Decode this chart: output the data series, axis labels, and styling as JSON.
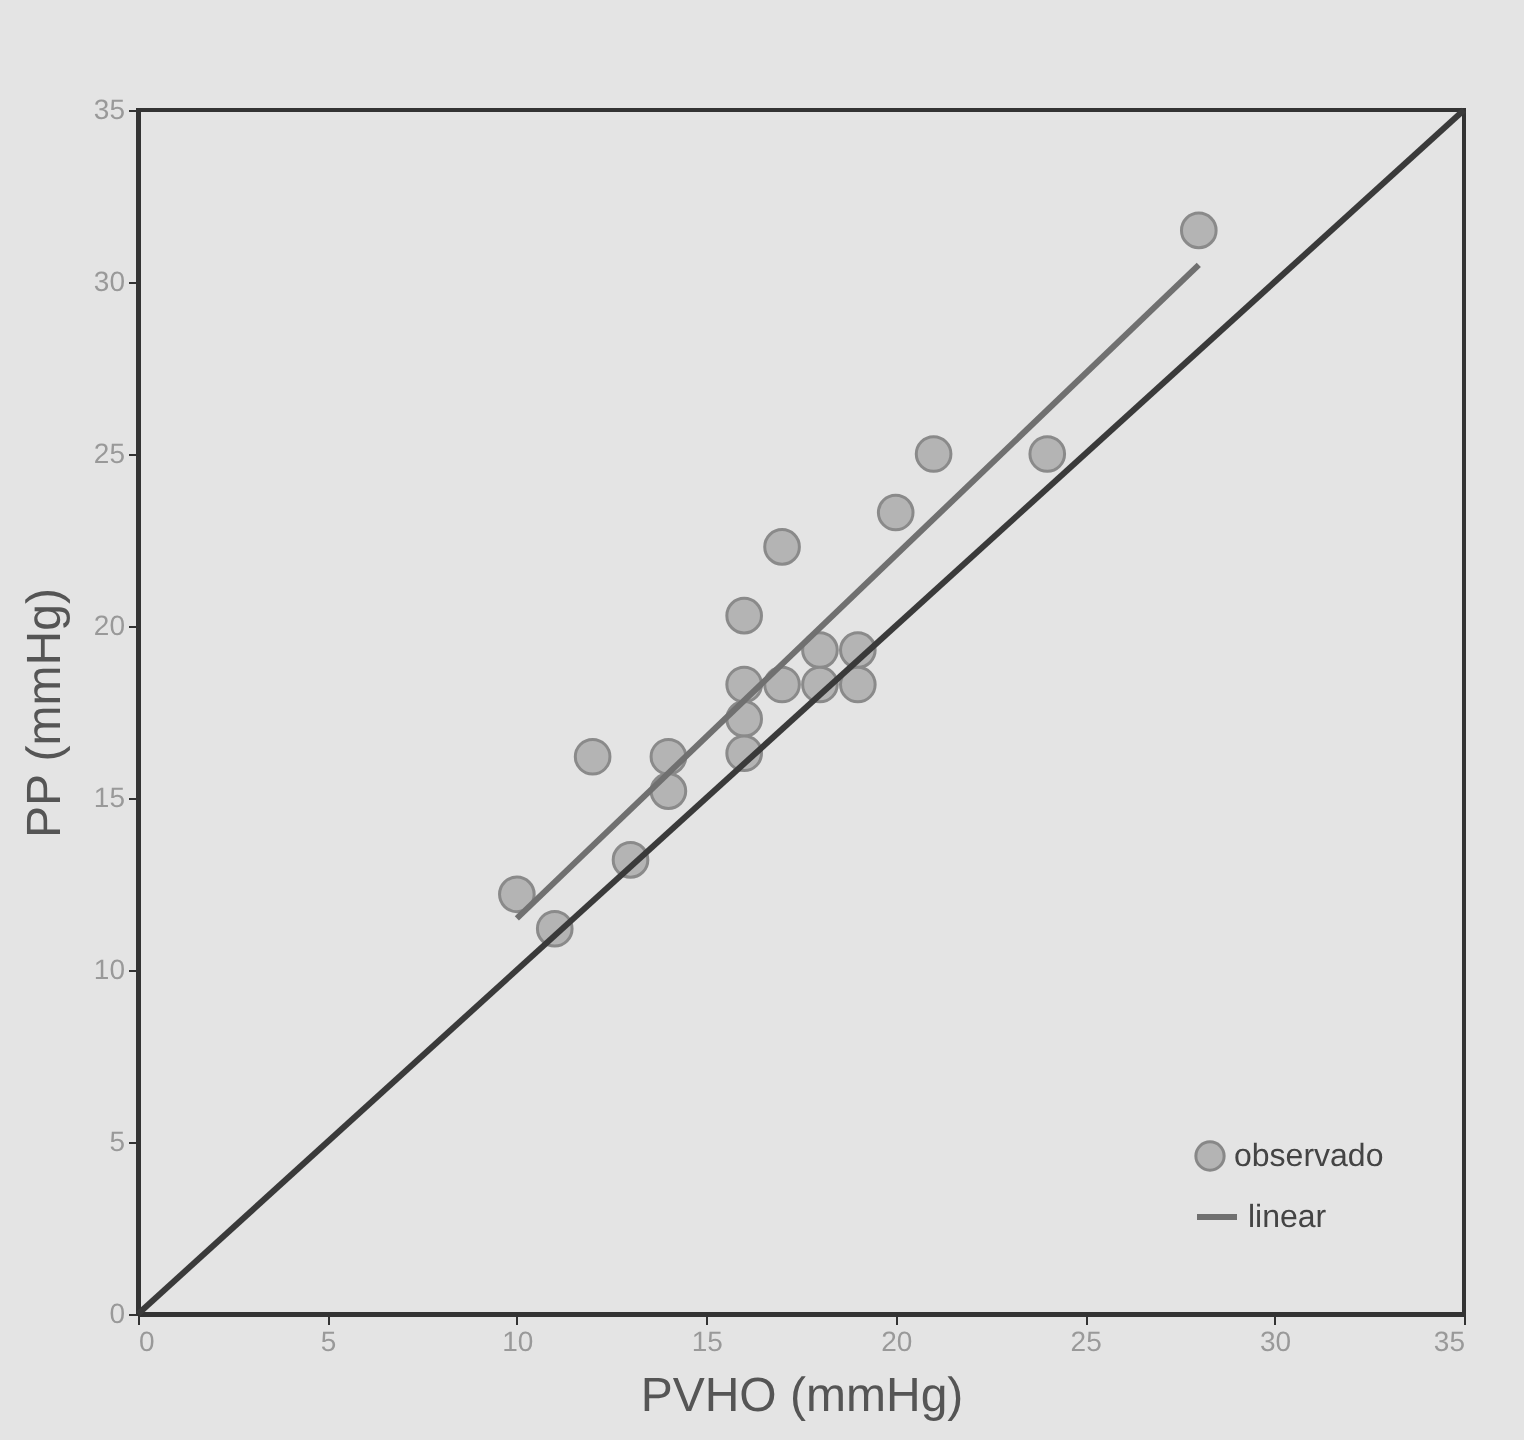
{
  "chart_data": {
    "type": "scatter",
    "xlabel": "PVHO (mmHg)",
    "ylabel": "PP (mmHg)",
    "xlim": [
      0,
      35
    ],
    "ylim": [
      0,
      35
    ],
    "xticks": [
      0,
      5,
      10,
      15,
      20,
      25,
      30,
      35
    ],
    "yticks": [
      0,
      5,
      10,
      15,
      20,
      25,
      30,
      35
    ],
    "grid": false,
    "legend": "bottom right",
    "series": [
      {
        "name": "observado",
        "marker": "circle",
        "color": "#b4b4b4",
        "x": [
          10,
          11,
          12,
          13,
          14,
          14,
          16,
          16,
          16,
          16,
          17,
          17,
          18,
          18,
          19,
          19,
          20,
          21,
          24,
          28
        ],
        "values": [
          12.2,
          11.2,
          16.2,
          13.2,
          16.2,
          15.2,
          20.3,
          18.3,
          17.3,
          16.3,
          22.3,
          18.3,
          19.3,
          18.3,
          19.3,
          18.3,
          23.3,
          25,
          25,
          31.5
        ]
      },
      {
        "name": "linear",
        "type": "line",
        "color": "#707070",
        "x": [
          10,
          28
        ],
        "values": [
          11.5,
          30.5
        ]
      },
      {
        "type": "line",
        "color": "#3a3a3a",
        "x": [
          0,
          35
        ],
        "values": [
          0,
          35
        ]
      }
    ]
  }
}
